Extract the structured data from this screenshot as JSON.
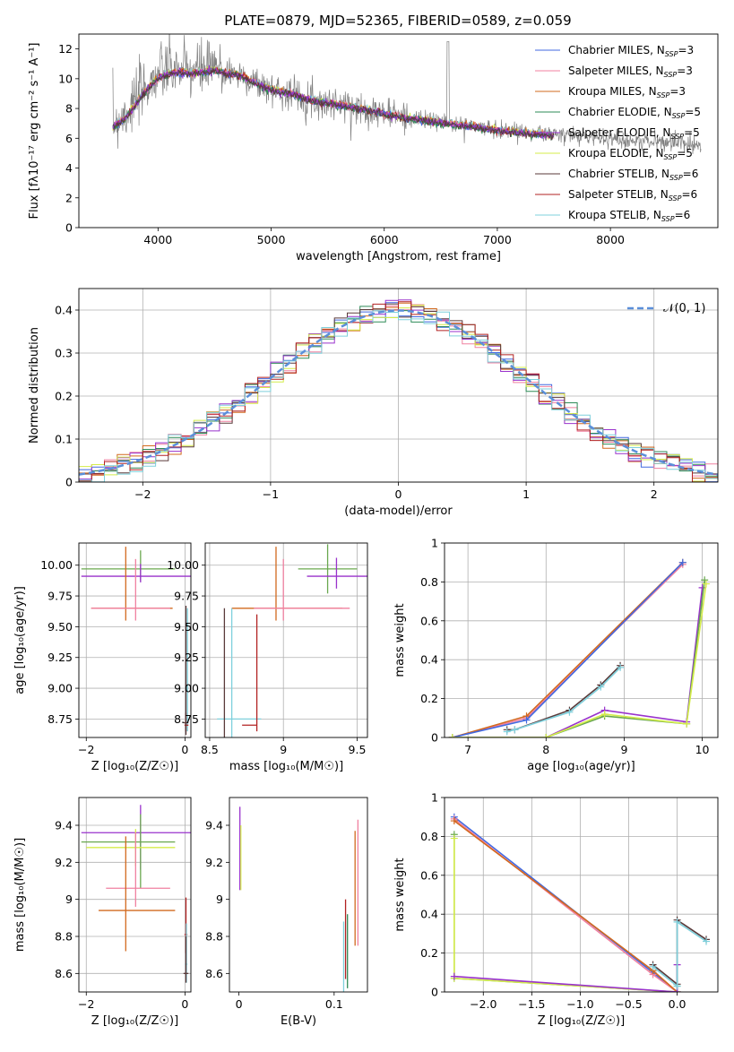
{
  "figure": {
    "title": "PLATE=0879, MJD=52365, FIBERID=0589, z=0.059"
  },
  "models": [
    {
      "name": "Chabrier MILES",
      "nssp": "3",
      "color": "#4169e1"
    },
    {
      "name": "Salpeter MILES",
      "nssp": "3",
      "color": "#f080a0"
    },
    {
      "name": "Kroupa MILES",
      "nssp": "3",
      "color": "#d2691e"
    },
    {
      "name": "Chabrier ELODIE",
      "nssp": "5",
      "color": "#2e8b57"
    },
    {
      "name": "Salpeter ELODIE",
      "nssp": "5",
      "color": "#9932cc"
    },
    {
      "name": "Kroupa ELODIE",
      "nssp": "5",
      "color": "#d4ec4a"
    },
    {
      "name": "Chabrier STELIB",
      "nssp": "6",
      "color": "#5a3a3a"
    },
    {
      "name": "Salpeter STELIB",
      "nssp": "6",
      "color": "#b22222"
    },
    {
      "name": "Kroupa STELIB",
      "nssp": "6",
      "color": "#7fd0dc"
    }
  ],
  "chart_data": [
    {
      "id": "spectrum",
      "type": "line",
      "xlabel": "wavelength [Angstrom, rest frame]",
      "ylabel": "Flux [fλ10⁻¹⁷ erg cm⁻² s⁻¹ A⁻¹]",
      "xlim": [
        3300,
        8950
      ],
      "ylim": [
        0,
        13
      ],
      "xticks": [
        4000,
        5000,
        6000,
        7000,
        8000
      ],
      "yticks": [
        0,
        2,
        4,
        6,
        8,
        10,
        12
      ],
      "grid": false,
      "legend": "top-right",
      "observed": {
        "x": [
          3600,
          3700,
          3800,
          3900,
          4000,
          4100,
          4200,
          4300,
          4400,
          4500,
          4600,
          4700,
          4800,
          4900,
          5000,
          5200,
          5400,
          5600,
          5800,
          6000,
          6200,
          6400,
          6600,
          6800,
          7000,
          7200,
          7400,
          7600,
          7800,
          8000,
          8200,
          8400,
          8600,
          8800
        ],
        "y": [
          7.0,
          7.6,
          8.5,
          9.5,
          10.3,
          10.6,
          10.6,
          10.5,
          10.6,
          10.7,
          10.5,
          10.3,
          10.0,
          9.6,
          9.3,
          9.0,
          8.5,
          8.3,
          8.0,
          7.7,
          7.4,
          7.2,
          7.0,
          6.8,
          6.6,
          6.5,
          6.3,
          6.2,
          6.1,
          6.0,
          5.8,
          5.8,
          5.7,
          5.6
        ]
      },
      "model": {
        "x": [
          3600,
          3700,
          3800,
          3900,
          4000,
          4100,
          4200,
          4300,
          4400,
          4500,
          4600,
          4700,
          4800,
          4900,
          5000,
          5200,
          5400,
          5600,
          5800,
          6000,
          6200,
          6400,
          6600,
          6800,
          7000,
          7200,
          7400,
          7500
        ],
        "y": [
          6.7,
          7.2,
          8.2,
          9.2,
          10.0,
          10.3,
          10.4,
          10.3,
          10.4,
          10.5,
          10.3,
          10.2,
          9.9,
          9.5,
          9.2,
          8.9,
          8.4,
          8.2,
          7.9,
          7.6,
          7.3,
          7.1,
          6.9,
          6.7,
          6.5,
          6.3,
          6.2,
          6.1
        ]
      }
    },
    {
      "id": "residuals",
      "type": "line",
      "xlabel": "(data-model)/error",
      "ylabel": "Normed distribution",
      "xlim": [
        -2.5,
        2.5
      ],
      "ylim": [
        0,
        0.45
      ],
      "xticks": [
        -2,
        -1,
        0,
        1,
        2
      ],
      "yticks": [
        0.0,
        0.1,
        0.2,
        0.3,
        0.4
      ],
      "grid": true,
      "legend": "top-right",
      "gauss_label": "𝒩(0, 1)",
      "gauss_color": "#5b8fd9",
      "bin_width": 0.1
    },
    {
      "id": "age-Z",
      "type": "scatter",
      "xlabel": "Z [log₁₀(Z/Z☉)]",
      "ylabel": "age  [log₁₀(age/yr)]",
      "xlim": [
        -2.15,
        0.12
      ],
      "ylim": [
        8.6,
        10.18
      ],
      "xticks": [
        -2,
        0
      ],
      "yticks": [
        8.75,
        9.0,
        9.25,
        9.5,
        9.75,
        10.0
      ],
      "ytick_labels": [
        "8.75",
        "9.00",
        "9.25",
        "9.50",
        "9.75",
        "10.00"
      ],
      "grid": true,
      "points": [
        {
          "x": -0.9,
          "xerr": [
            1.2,
            0.7
          ],
          "y": 9.97,
          "yerr": [
            0.1,
            0.15
          ],
          "color": "#6aa84f"
        },
        {
          "x": -0.9,
          "xerr": [
            1.2,
            1.1
          ],
          "y": 9.91,
          "yerr": [
            0.05,
            0.1
          ],
          "color": "#9932cc"
        },
        {
          "x": -1.2,
          "xerr": [
            0.7,
            0.95
          ],
          "y": 9.65,
          "yerr": [
            0.1,
            0.5
          ],
          "color": "#d2691e"
        },
        {
          "x": -1.0,
          "xerr": [
            0.9,
            0.7
          ],
          "y": 9.65,
          "yerr": [
            0.1,
            0.4
          ],
          "color": "#f080a0"
        },
        {
          "x": 0.05,
          "xerr": [
            0.03,
            0.0
          ],
          "y": 8.75,
          "yerr": [
            0.1,
            0.9
          ],
          "color": "#7fd0dc"
        },
        {
          "x": 0.02,
          "xerr": [
            0.03,
            0.05
          ],
          "y": 8.7,
          "yerr": [
            0.05,
            0.1
          ],
          "color": "#b22222"
        },
        {
          "x": 0.02,
          "xerr": [
            0.05,
            0.05
          ],
          "y": 8.72,
          "yerr": [
            0.1,
            0.95
          ],
          "color": "#5a3a3a"
        }
      ]
    },
    {
      "id": "age-mass",
      "type": "scatter",
      "xlabel": "mass [log₁₀(M/M☉)]",
      "ylabel": "",
      "xlim": [
        8.47,
        9.57
      ],
      "ylim": [
        8.6,
        10.18
      ],
      "xticks": [
        8.5,
        9.0,
        9.5
      ],
      "yticks": [
        8.75,
        9.0,
        9.25,
        9.5,
        9.75,
        10.0
      ],
      "ytick_labels": [
        "8.75",
        "9.00",
        "9.25",
        "9.50",
        "9.75",
        "10.00"
      ],
      "grid": true,
      "points": [
        {
          "x": 9.3,
          "xerr": [
            0.2,
            0.2
          ],
          "y": 9.97,
          "yerr": [
            0.2,
            0.2
          ],
          "color": "#6aa84f"
        },
        {
          "x": 9.36,
          "xerr": [
            0.2,
            0.25
          ],
          "y": 9.91,
          "yerr": [
            0.1,
            0.15
          ],
          "color": "#9932cc"
        },
        {
          "x": 8.95,
          "xerr": [
            0.3,
            0.45
          ],
          "y": 9.65,
          "yerr": [
            0.1,
            0.5
          ],
          "color": "#d2691e"
        },
        {
          "x": 9.0,
          "xerr": [
            0.2,
            0.45
          ],
          "y": 9.65,
          "yerr": [
            0.1,
            0.4
          ],
          "color": "#f080a0"
        },
        {
          "x": 8.65,
          "xerr": [
            0.1,
            0.2
          ],
          "y": 8.75,
          "yerr": [
            0.15,
            0.9
          ],
          "color": "#7fd0dc"
        },
        {
          "x": 8.82,
          "xerr": [
            0.1,
            0.0
          ],
          "y": 8.7,
          "yerr": [
            0.05,
            0.9
          ],
          "color": "#b22222"
        },
        {
          "x": 8.6,
          "xerr": [
            0.0,
            0.0
          ],
          "y": 8.9,
          "yerr": [
            0.3,
            0.75
          ],
          "color": "#5a3a3a"
        }
      ]
    },
    {
      "id": "weight-age",
      "type": "line",
      "xlabel": "age  [log₁₀(age/yr)]",
      "ylabel": "mass weight",
      "xlim": [
        6.7,
        10.2
      ],
      "ylim": [
        0,
        1.0
      ],
      "xticks": [
        7,
        8,
        9,
        10
      ],
      "yticks": [
        0.0,
        0.2,
        0.4,
        0.6,
        0.8,
        1.0
      ],
      "grid": true,
      "series": [
        {
          "color": "#f080a0",
          "x": [
            6.8,
            7.75,
            9.75
          ],
          "y": [
            0.0,
            0.1,
            0.89
          ]
        },
        {
          "color": "#d2691e",
          "x": [
            6.8,
            7.75,
            9.75
          ],
          "y": [
            0.0,
            0.11,
            0.9
          ]
        },
        {
          "color": "#4169e1",
          "x": [
            6.8,
            7.75,
            9.75
          ],
          "y": [
            0.0,
            0.09,
            0.9
          ]
        },
        {
          "color": "#9932cc",
          "x": [
            6.8,
            8.0,
            8.75,
            9.8,
            10.0
          ],
          "y": [
            0.0,
            0.0,
            0.14,
            0.08,
            0.77
          ]
        },
        {
          "color": "#6aa84f",
          "x": [
            6.8,
            8.0,
            8.75,
            9.8,
            10.03
          ],
          "y": [
            0.0,
            0.0,
            0.11,
            0.07,
            0.81
          ]
        },
        {
          "color": "#d4ec4a",
          "x": [
            6.8,
            8.0,
            8.75,
            9.8,
            10.05
          ],
          "y": [
            0.0,
            0.0,
            0.12,
            0.07,
            0.79
          ]
        },
        {
          "color": "#5a3a3a",
          "x": [
            7.5,
            7.6,
            8.3,
            8.7,
            8.95
          ],
          "y": [
            0.04,
            0.04,
            0.14,
            0.27,
            0.37
          ]
        },
        {
          "color": "#7fd0dc",
          "x": [
            7.5,
            7.6,
            8.3,
            8.7,
            8.95
          ],
          "y": [
            0.03,
            0.04,
            0.13,
            0.26,
            0.36
          ]
        }
      ]
    },
    {
      "id": "mass-Z",
      "type": "scatter",
      "xlabel": "Z [log₁₀(Z/Z☉)]",
      "ylabel": "mass [log₁₀(M/M☉)]",
      "xlim": [
        -2.15,
        0.12
      ],
      "ylim": [
        8.5,
        9.55
      ],
      "xticks": [
        -2,
        0
      ],
      "yticks": [
        8.6,
        8.8,
        9.0,
        9.2,
        9.4
      ],
      "grid": true,
      "points": [
        {
          "x": -0.9,
          "xerr": [
            1.2,
            1.1
          ],
          "y": 9.36,
          "yerr": [
            0.2,
            0.15
          ],
          "color": "#9932cc"
        },
        {
          "x": -0.9,
          "xerr": [
            1.2,
            0.7
          ],
          "y": 9.31,
          "yerr": [
            0.25,
            0.15
          ],
          "color": "#6aa84f"
        },
        {
          "x": -1.0,
          "xerr": [
            1.0,
            0.8
          ],
          "y": 9.28,
          "yerr": [
            0.1,
            0.1
          ],
          "color": "#d4ec4a"
        },
        {
          "x": -1.0,
          "xerr": [
            0.6,
            0.7
          ],
          "y": 9.06,
          "yerr": [
            0.1,
            0.3
          ],
          "color": "#f080a0"
        },
        {
          "x": -1.2,
          "xerr": [
            0.55,
            1.0
          ],
          "y": 8.94,
          "yerr": [
            0.22,
            0.4
          ],
          "color": "#d2691e"
        },
        {
          "x": 0.02,
          "xerr": [
            0.03,
            0.03
          ],
          "y": 8.81,
          "yerr": [
            0.1,
            0.2
          ],
          "color": "#b22222"
        },
        {
          "x": 0.03,
          "xerr": [
            0.03,
            0.02
          ],
          "y": 8.65,
          "yerr": [
            0.1,
            0.22
          ],
          "color": "#7fd0dc"
        },
        {
          "x": 0.02,
          "xerr": [
            0.05,
            0.05
          ],
          "y": 8.6,
          "yerr": [
            0.05,
            0.2
          ],
          "color": "#5a3a3a"
        }
      ]
    },
    {
      "id": "mass-ebv",
      "type": "scatter",
      "xlabel": "E(B-V)",
      "ylabel": "",
      "xlim": [
        -0.01,
        0.135
      ],
      "ylim": [
        8.5,
        9.55
      ],
      "xticks": [
        0.0,
        0.1
      ],
      "yticks": [
        8.6,
        8.8,
        9.0,
        9.2,
        9.4
      ],
      "grid": false,
      "points": [
        {
          "x": 0.001,
          "y": 9.35,
          "yerr": [
            0.3,
            0.15
          ],
          "color": "#9932cc"
        },
        {
          "x": 0.002,
          "y": 9.3,
          "yerr": [
            0.25,
            0.1
          ],
          "color": "#d4ec4a"
        },
        {
          "x": 0.125,
          "y": 9.1,
          "yerr": [
            0.35,
            0.33
          ],
          "color": "#f080a0"
        },
        {
          "x": 0.122,
          "y": 9.05,
          "yerr": [
            0.3,
            0.32
          ],
          "color": "#d2691e"
        },
        {
          "x": 0.112,
          "y": 8.82,
          "yerr": [
            0.25,
            0.18
          ],
          "color": "#b22222"
        },
        {
          "x": 0.11,
          "y": 8.65,
          "yerr": [
            0.15,
            0.23
          ],
          "color": "#7fd0dc"
        },
        {
          "x": 0.114,
          "y": 8.62,
          "yerr": [
            0.1,
            0.3
          ],
          "color": "#2e8b57"
        }
      ]
    },
    {
      "id": "weight-Z",
      "type": "line",
      "xlabel": "Z [log₁₀(Z/Z☉)]",
      "ylabel": "mass weight",
      "xlim": [
        -2.4,
        0.42
      ],
      "ylim": [
        0,
        1.0
      ],
      "xticks": [
        -2.0,
        -1.5,
        -1.0,
        -0.5,
        0.0
      ],
      "xtick_labels": [
        "−2.0",
        "−1.5",
        "−1.0",
        "−0.5",
        "0.0"
      ],
      "yticks": [
        0.0,
        0.2,
        0.4,
        0.6,
        0.8,
        1.0
      ],
      "grid": true,
      "series": [
        {
          "color": "#4169e1",
          "x": [
            -2.3,
            -0.25,
            0.0
          ],
          "y": [
            0.9,
            0.1,
            0.0
          ]
        },
        {
          "color": "#f080a0",
          "x": [
            -2.3,
            -0.25,
            0.0
          ],
          "y": [
            0.89,
            0.09,
            0.0
          ]
        },
        {
          "color": "#d2691e",
          "x": [
            -2.3,
            -0.25,
            0.0
          ],
          "y": [
            0.88,
            0.11,
            0.0
          ]
        },
        {
          "color": "#6aa84f",
          "x": [
            -2.3,
            -2.3,
            0.0,
            0.0
          ],
          "y": [
            0.81,
            0.07,
            0.0,
            0.03
          ]
        },
        {
          "color": "#d4ec4a",
          "x": [
            -2.3,
            -2.3,
            0.0
          ],
          "y": [
            0.79,
            0.07,
            0.0
          ]
        },
        {
          "color": "#9932cc",
          "x": [
            -2.3,
            0.0,
            0.0
          ],
          "y": [
            0.08,
            0.0,
            0.14
          ]
        },
        {
          "color": "#5a3a3a",
          "x": [
            -0.25,
            0.0,
            0.0,
            0.3
          ],
          "y": [
            0.14,
            0.04,
            0.37,
            0.27
          ]
        },
        {
          "color": "#7fd0dc",
          "x": [
            -0.25,
            0.0,
            0.0,
            0.3
          ],
          "y": [
            0.13,
            0.03,
            0.36,
            0.26
          ]
        }
      ]
    }
  ]
}
